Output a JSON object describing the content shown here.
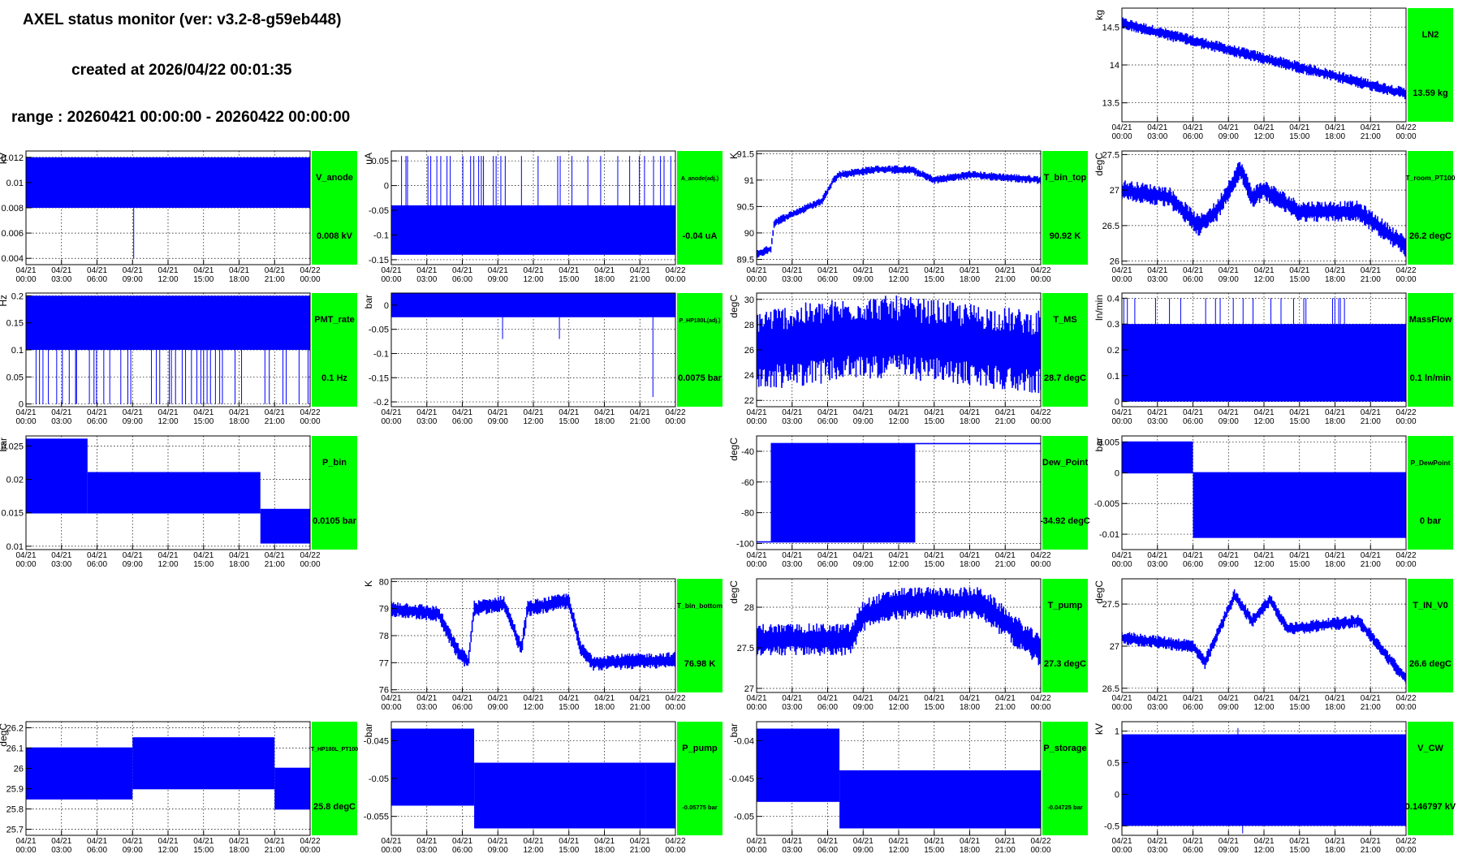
{
  "header": {
    "title": "AXEL status monitor (ver: v3.2-8-g59eb448)",
    "created": "created at 2026/04/22 00:01:35",
    "range": "range : 20260421 00:00:00 - 20260422 00:00:00"
  },
  "style": {
    "series_color": "#0000ff",
    "panel_color": "#00ff00",
    "grid_color": "#000000"
  },
  "time_axis": {
    "tick_labels": [
      [
        "04/21",
        "00:00"
      ],
      [
        "04/21",
        "03:00"
      ],
      [
        "04/21",
        "06:00"
      ],
      [
        "04/21",
        "09:00"
      ],
      [
        "04/21",
        "12:00"
      ],
      [
        "04/21",
        "15:00"
      ],
      [
        "04/21",
        "18:00"
      ],
      [
        "04/21",
        "21:00"
      ],
      [
        "04/22",
        "00:00"
      ]
    ],
    "range_hours": [
      0,
      24
    ]
  },
  "chart_data": [
    {
      "type": "line",
      "title": "LN2",
      "ylabel": "kg",
      "value_text": "13.59 kg",
      "yticks": [
        "13.5",
        "14",
        "14.5"
      ],
      "ytick_values": [
        13.5,
        14.0,
        14.5
      ],
      "ylim": [
        13.25,
        14.75
      ],
      "mode": "trend",
      "trend": [
        [
          0,
          14.55
        ],
        [
          24,
          13.62
        ]
      ],
      "band": 0.08
    },
    {
      "type": "line",
      "title": "V_anode",
      "ylabel": "kV",
      "value_text": "0.008 kV",
      "yticks": [
        "0.004",
        "0.006",
        "0.008",
        "0.01",
        "0.012"
      ],
      "ytick_values": [
        0.004,
        0.006,
        0.008,
        0.01,
        0.012
      ],
      "ylim": [
        0.0035,
        0.0125
      ],
      "mode": "block",
      "block": [
        0.008,
        0.012
      ],
      "spikes": [
        [
          9.1,
          0.004
        ]
      ]
    },
    {
      "type": "line",
      "title": "A_anode(adj.)",
      "ylabel": "uA",
      "value_text": "-0.04 uA",
      "yticks": [
        "-0.15",
        "-0.1",
        "-0.05",
        "0",
        "0.05"
      ],
      "ytick_values": [
        -0.15,
        -0.1,
        -0.05,
        0,
        0.05
      ],
      "ylim": [
        -0.16,
        0.07
      ],
      "mode": "block",
      "block": [
        -0.14,
        -0.04
      ],
      "spikeup": [
        0.06,
        0.45
      ]
    },
    {
      "type": "line",
      "title": "T_bin_top",
      "ylabel": "K",
      "value_text": "90.92 K",
      "yticks": [
        "89.5",
        "90",
        "90.5",
        "91",
        "91.5"
      ],
      "ytick_values": [
        89.5,
        90.0,
        90.5,
        91.0,
        91.5
      ],
      "ylim": [
        89.4,
        91.55
      ],
      "mode": "trend",
      "trend": [
        [
          0,
          89.6
        ],
        [
          1.2,
          89.7
        ],
        [
          1.5,
          90.2
        ],
        [
          5.5,
          90.6
        ],
        [
          6.5,
          91.0
        ],
        [
          7,
          91.1
        ],
        [
          10,
          91.2
        ],
        [
          13,
          91.2
        ],
        [
          15,
          91.0
        ],
        [
          18,
          91.1
        ],
        [
          24,
          91.0
        ]
      ],
      "band": 0.08
    },
    {
      "type": "line",
      "title": "T_room_PT100",
      "ylabel": "degC",
      "value_text": "26.2 degC",
      "yticks": [
        "26",
        "26.5",
        "27",
        "27.5"
      ],
      "ytick_values": [
        26.0,
        26.5,
        27.0,
        27.5
      ],
      "ylim": [
        25.95,
        27.55
      ],
      "mode": "trend",
      "trend": [
        [
          0,
          27.0
        ],
        [
          4,
          26.9
        ],
        [
          6.5,
          26.5
        ],
        [
          8,
          26.7
        ],
        [
          10,
          27.3
        ],
        [
          11,
          26.9
        ],
        [
          12,
          27.0
        ],
        [
          15,
          26.7
        ],
        [
          20,
          26.7
        ],
        [
          24,
          26.2
        ]
      ],
      "band": 0.15
    },
    {
      "type": "line",
      "title": "PMT_rate",
      "ylabel": "Hz",
      "value_text": "0.1 Hz",
      "yticks": [
        "0",
        "0.05",
        "0.1",
        "0.15",
        "0.2"
      ],
      "ytick_values": [
        0,
        0.05,
        0.1,
        0.15,
        0.2
      ],
      "ylim": [
        -0.005,
        0.205
      ],
      "mode": "block",
      "block": [
        0.1,
        0.2
      ],
      "spikedown": [
        0,
        0.5
      ]
    },
    {
      "type": "line",
      "title": "P_HP180L(adj.)",
      "ylabel": "bar",
      "value_text": "0.0075 bar",
      "yticks": [
        "-0.2",
        "-0.15",
        "-0.1",
        "-0.05",
        "0"
      ],
      "ytick_values": [
        -0.2,
        -0.15,
        -0.1,
        -0.05,
        0
      ],
      "ylim": [
        -0.21,
        0.025
      ],
      "mode": "block",
      "block": [
        -0.025,
        0.025
      ],
      "spikes": [
        [
          22.1,
          -0.19
        ],
        [
          9.4,
          -0.07
        ],
        [
          14.2,
          -0.07
        ]
      ]
    },
    {
      "type": "line",
      "title": "T_MS",
      "ylabel": "degC",
      "value_text": "28.7 degC",
      "yticks": [
        "22",
        "24",
        "26",
        "28",
        "30"
      ],
      "ytick_values": [
        22,
        24,
        26,
        28,
        30
      ],
      "ylim": [
        21.5,
        30.5
      ],
      "mode": "trend",
      "trend": [
        [
          0,
          26.0
        ],
        [
          9,
          27.0
        ],
        [
          12,
          27.0
        ],
        [
          24,
          25.8
        ]
      ],
      "band": 3.3
    },
    {
      "type": "line",
      "title": "MassFlow",
      "ylabel": "ln/min",
      "value_text": "0.1 ln/min",
      "yticks": [
        "0",
        "0.1",
        "0.2",
        "0.3",
        "0.4"
      ],
      "ytick_values": [
        0,
        0.1,
        0.2,
        0.3,
        0.4
      ],
      "ylim": [
        -0.02,
        0.42
      ],
      "mode": "block",
      "block": [
        0,
        0.3
      ],
      "spikeup": [
        0.4,
        0.3
      ]
    },
    {
      "type": "line",
      "title": "P_bin",
      "ylabel": "bar",
      "value_text": "0.0105 bar",
      "yticks": [
        "0.01",
        "0.015",
        "0.02",
        "0.025"
      ],
      "ytick_values": [
        0.01,
        0.015,
        0.02,
        0.025
      ],
      "ylim": [
        0.0095,
        0.0265
      ],
      "mode": "steps",
      "steps": [
        [
          0,
          5.2,
          0.015,
          0.026
        ],
        [
          5.2,
          19.8,
          0.015,
          0.021
        ],
        [
          19.8,
          24,
          0.0105,
          0.0155
        ]
      ]
    },
    {
      "type": "line",
      "title": "Dew_Point",
      "ylabel": "degC",
      "value_text": "-34.92 degC",
      "yticks": [
        "-100",
        "-80",
        "-60",
        "-40"
      ],
      "ytick_values": [
        -100,
        -80,
        -60,
        -40
      ],
      "ylim": [
        -104,
        -30
      ],
      "mode": "steps",
      "steps": [
        [
          0,
          1.2,
          -99,
          -99
        ],
        [
          1.2,
          13.4,
          -99,
          -35
        ],
        [
          13.4,
          24,
          -35,
          -35
        ]
      ]
    },
    {
      "type": "line",
      "title": "P_DewPoint",
      "ylabel": "bar",
      "value_text": "0 bar",
      "yticks": [
        "-0.01",
        "-0.005",
        "0",
        "0.005"
      ],
      "ytick_values": [
        -0.01,
        -0.005,
        0,
        0.005
      ],
      "ylim": [
        -0.0125,
        0.006
      ],
      "mode": "steps",
      "steps": [
        [
          0,
          6.0,
          0,
          0.005
        ],
        [
          6.0,
          24,
          -0.0105,
          0
        ]
      ]
    },
    {
      "type": "line",
      "title": "T_bin_bottom",
      "ylabel": "K",
      "value_text": "76.98 K",
      "yticks": [
        "76",
        "77",
        "78",
        "79",
        "80"
      ],
      "ytick_values": [
        76,
        77,
        78,
        79,
        80
      ],
      "ylim": [
        75.9,
        80.1
      ],
      "mode": "trend",
      "trend": [
        [
          0,
          79.0
        ],
        [
          4,
          78.8
        ],
        [
          5.5,
          77.5
        ],
        [
          6.5,
          77.0
        ],
        [
          7,
          79.0
        ],
        [
          9.5,
          79.2
        ],
        [
          11,
          77.5
        ],
        [
          11.5,
          79.0
        ],
        [
          15,
          79.3
        ],
        [
          16,
          77.5
        ],
        [
          17,
          77.0
        ],
        [
          24,
          77.1
        ]
      ],
      "band": 0.3
    },
    {
      "type": "line",
      "title": "T_pump",
      "ylabel": "degC",
      "value_text": "27.3 degC",
      "yticks": [
        "27",
        "27.5",
        "28"
      ],
      "ytick_values": [
        27.0,
        27.5,
        28.0
      ],
      "ylim": [
        26.95,
        28.35
      ],
      "mode": "trend",
      "trend": [
        [
          0,
          27.6
        ],
        [
          8,
          27.6
        ],
        [
          9,
          27.9
        ],
        [
          12,
          28.05
        ],
        [
          19,
          28.05
        ],
        [
          24,
          27.45
        ]
      ],
      "band": 0.2
    },
    {
      "type": "line",
      "title": "T_IN_V0",
      "ylabel": "degC",
      "value_text": "26.6 degC",
      "yticks": [
        "26.5",
        "27",
        "27.5"
      ],
      "ytick_values": [
        26.5,
        27.0,
        27.5
      ],
      "ylim": [
        26.45,
        27.8
      ],
      "mode": "trend",
      "trend": [
        [
          0,
          27.1
        ],
        [
          6,
          27.0
        ],
        [
          7,
          26.8
        ],
        [
          9.5,
          27.6
        ],
        [
          11,
          27.3
        ],
        [
          12.5,
          27.55
        ],
        [
          14,
          27.2
        ],
        [
          20,
          27.3
        ],
        [
          24,
          26.6
        ]
      ],
      "band": 0.08
    },
    {
      "type": "line",
      "title": "T_HP180L_PT100",
      "ylabel": "degC",
      "value_text": "25.8 degC",
      "yticks": [
        "25.7",
        "25.8",
        "25.9",
        "26",
        "26.1",
        "26.2"
      ],
      "ytick_values": [
        25.7,
        25.8,
        25.9,
        26.0,
        26.1,
        26.2
      ],
      "ylim": [
        25.67,
        26.23
      ],
      "mode": "steps",
      "steps": [
        [
          0,
          9,
          25.85,
          26.1
        ],
        [
          9,
          21,
          25.9,
          26.15
        ],
        [
          21,
          24,
          25.8,
          26.0
        ]
      ]
    },
    {
      "type": "line",
      "title": "P_pump",
      "ylabel": "bar",
      "value_text": "-0.05775 bar",
      "yticks": [
        "-0.055",
        "-0.05",
        "-0.045"
      ],
      "ytick_values": [
        -0.055,
        -0.05,
        -0.045
      ],
      "ylim": [
        -0.0575,
        -0.0425
      ],
      "mode": "steps",
      "steps": [
        [
          0,
          7,
          -0.0535,
          -0.0435
        ],
        [
          7,
          21.5,
          -0.0565,
          -0.048
        ],
        [
          21.5,
          24,
          -0.0565,
          -0.048
        ]
      ]
    },
    {
      "type": "line",
      "title": "P_storage",
      "ylabel": "bar",
      "value_text": "-0.04725 bar",
      "yticks": [
        "-0.05",
        "-0.045",
        "-0.04"
      ],
      "ytick_values": [
        -0.05,
        -0.045,
        -0.04
      ],
      "ylim": [
        -0.0525,
        -0.0375
      ],
      "mode": "steps",
      "steps": [
        [
          0,
          7,
          -0.048,
          -0.0385
        ],
        [
          7,
          24,
          -0.0515,
          -0.044
        ]
      ]
    },
    {
      "type": "line",
      "title": "V_CW",
      "ylabel": "kV",
      "value_text": "0.146797 kV",
      "yticks": [
        "-0.5",
        "0",
        "0.5",
        "1"
      ],
      "ytick_values": [
        -0.5,
        0,
        0.5,
        1.0
      ],
      "ylim": [
        -0.65,
        1.15
      ],
      "mode": "block",
      "block": [
        -0.5,
        0.95
      ],
      "spikes": [
        [
          10.2,
          -0.62
        ],
        [
          9.8,
          1.05
        ]
      ]
    }
  ]
}
